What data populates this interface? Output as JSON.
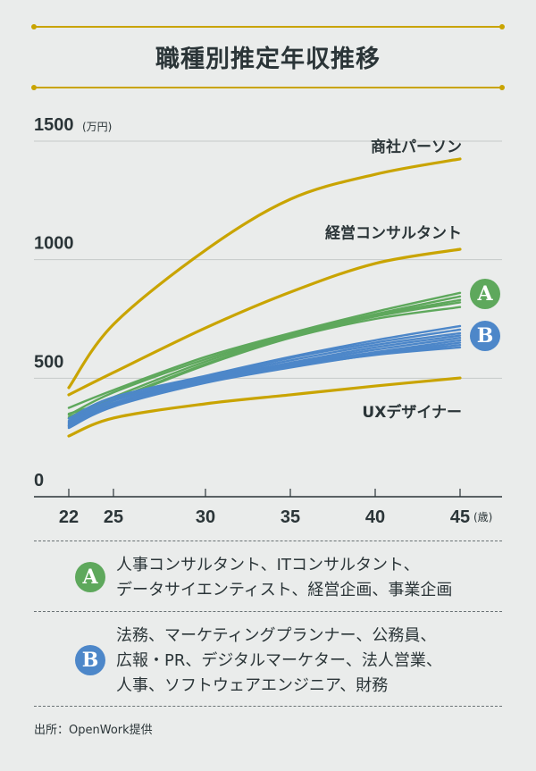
{
  "title": "職種別推定年収推移",
  "colors": {
    "gold": "#c9a400",
    "green": "#5ea85c",
    "blue": "#4d87c9",
    "text": "#2b3538",
    "grid": "#c6cac9"
  },
  "chart_data": {
    "type": "line",
    "title": "職種別推定年収推移",
    "xlabel_unit": "(歳)",
    "ylabel_unit": "(万円)",
    "x": [
      22,
      25,
      30,
      35,
      40,
      45
    ],
    "x_ticks": [
      "22",
      "25",
      "30",
      "35",
      "40",
      "45"
    ],
    "y_ticks": [
      "0",
      "500",
      "1000",
      "1500"
    ],
    "ylim": [
      0,
      1500
    ],
    "xlim": [
      22,
      45
    ],
    "grid": true,
    "series": [
      {
        "label": "商社パーソン",
        "group": "gold",
        "values": [
          460,
          727,
          1040,
          1255,
          1360,
          1425
        ]
      },
      {
        "label": "経営コンサルタント",
        "group": "gold",
        "values": [
          430,
          524,
          712,
          863,
          984,
          1044
        ]
      },
      {
        "label": "UXデザイナー",
        "group": "gold",
        "values": [
          256,
          332,
          392,
          430,
          467,
          501
        ]
      },
      {
        "group": "A",
        "values": [
          375,
          450,
          590,
          690,
          780,
          860
        ]
      },
      {
        "group": "A",
        "values": [
          345,
          440,
          580,
          685,
          770,
          845
        ]
      },
      {
        "group": "A",
        "values": [
          335,
          420,
          570,
          680,
          765,
          830
        ]
      },
      {
        "group": "A",
        "values": [
          350,
          410,
          560,
          675,
          760,
          820
        ]
      },
      {
        "group": "A",
        "values": [
          330,
          405,
          555,
          670,
          750,
          800
        ]
      },
      {
        "group": "B",
        "values": [
          330,
          420,
          510,
          590,
          660,
          720
        ]
      },
      {
        "group": "B",
        "values": [
          320,
          410,
          505,
          585,
          650,
          705
        ]
      },
      {
        "group": "B",
        "values": [
          315,
          405,
          500,
          575,
          640,
          690
        ]
      },
      {
        "group": "B",
        "values": [
          305,
          395,
          495,
          565,
          630,
          680
        ]
      },
      {
        "group": "B",
        "values": [
          300,
          390,
          490,
          560,
          620,
          670
        ]
      },
      {
        "group": "B",
        "values": [
          295,
          385,
          485,
          555,
          610,
          660
        ]
      },
      {
        "group": "B",
        "values": [
          310,
          395,
          490,
          550,
          605,
          650
        ]
      },
      {
        "group": "B",
        "values": [
          290,
          380,
          480,
          545,
          600,
          640
        ]
      },
      {
        "group": "B",
        "values": [
          300,
          385,
          482,
          548,
          598,
          630
        ]
      }
    ]
  },
  "badges": {
    "a": "A",
    "b": "B"
  },
  "legend": {
    "a_lines": [
      "人事コンサルタント、ITコンサルタント、",
      "データサイエンティスト、経営企画、事業企画"
    ],
    "b_lines": [
      "法務、マーケティングプランナー、公務員、",
      "広報・PR、デジタルマーケター、法人営業、",
      "人事、ソフトウェアエンジニア、財務"
    ]
  },
  "source": "出所：OpenWork提供"
}
